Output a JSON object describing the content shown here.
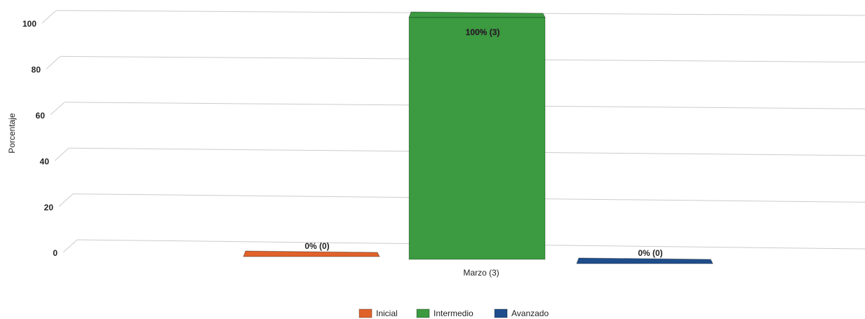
{
  "chart_data": {
    "type": "bar",
    "y_label": "Porcentaje",
    "categories": [
      "Marzo (3)"
    ],
    "series": [
      {
        "name": "Inicial",
        "color": "#e0622a",
        "values": [
          0
        ],
        "value_labels": [
          "0% (0)"
        ]
      },
      {
        "name": "Intermedio",
        "color": "#3c9a40",
        "values": [
          100
        ],
        "value_labels": [
          "100% (3)"
        ]
      },
      {
        "name": "Avanzado",
        "color": "#1f4e8c",
        "values": [
          0
        ],
        "value_labels": [
          "0% (0)"
        ]
      }
    ],
    "ylim": [
      0,
      100
    ],
    "yticks": [
      0,
      20,
      40,
      60,
      80,
      100
    ],
    "grid": true,
    "legend": "bottom"
  }
}
